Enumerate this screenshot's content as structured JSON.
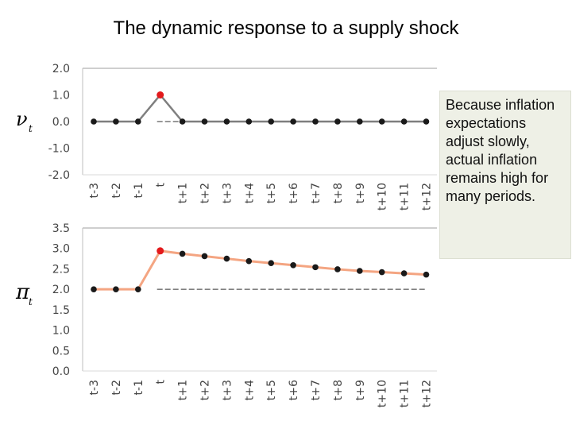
{
  "title": "The dynamic response to a supply shock",
  "callout": "Because inflation expectations adjust slowly, actual inflation remains high for many periods.",
  "colors": {
    "line1": "#7f7f7f",
    "line2": "#f4a582",
    "point": "#1a1a1a",
    "highlight": "#e31a1c",
    "axis": "#bfbfbf"
  },
  "chart_data": [
    {
      "type": "line",
      "ylabel": "ν",
      "ylabel_sub": "t",
      "categories": [
        "t-3",
        "t-2",
        "t-1",
        "t",
        "t+1",
        "t+2",
        "t+3",
        "t+4",
        "t+5",
        "t+6",
        "t+7",
        "t+8",
        "t+9",
        "t+10",
        "t+11",
        "t+12"
      ],
      "values": [
        0,
        0,
        0,
        1,
        0,
        0,
        0,
        0,
        0,
        0,
        0,
        0,
        0,
        0,
        0,
        0
      ],
      "ylim": [
        -2,
        2
      ],
      "yticks": [
        "2.0",
        "1.0",
        "0.0",
        "-1.0",
        "-2.0"
      ],
      "ytick_values": [
        2,
        1,
        0,
        -1,
        -2
      ],
      "highlight_index": 3,
      "reference_line": 0
    },
    {
      "type": "line",
      "ylabel": "π",
      "ylabel_sub": "t",
      "categories": [
        "t-3",
        "t-2",
        "t-1",
        "t",
        "t+1",
        "t+2",
        "t+3",
        "t+4",
        "t+5",
        "t+6",
        "t+7",
        "t+8",
        "t+9",
        "t+10",
        "t+11",
        "t+12"
      ],
      "values": [
        2.0,
        2.0,
        2.0,
        2.94,
        2.87,
        2.81,
        2.75,
        2.69,
        2.64,
        2.59,
        2.54,
        2.49,
        2.45,
        2.42,
        2.39,
        2.36
      ],
      "ylim": [
        0,
        3.5
      ],
      "yticks": [
        "3.5",
        "3.0",
        "2.5",
        "2.0",
        "1.5",
        "1.0",
        "0.5",
        "0.0"
      ],
      "ytick_values": [
        3.5,
        3.0,
        2.5,
        2.0,
        1.5,
        1.0,
        0.5,
        0.0
      ],
      "highlight_index": 3,
      "reference_line": 2.0
    }
  ]
}
